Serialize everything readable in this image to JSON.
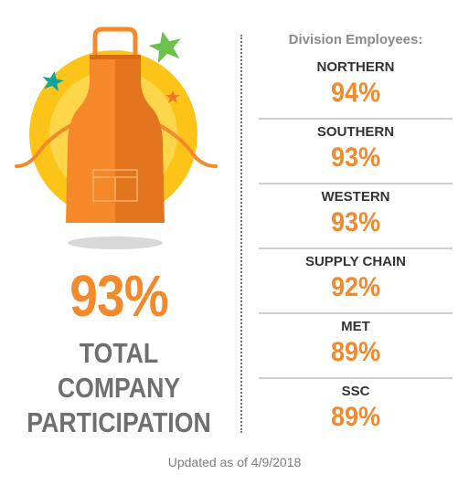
{
  "total": {
    "percent": "93%",
    "label_lines": [
      "TOTAL",
      "COMPANY",
      "PARTICIPATION"
    ]
  },
  "panel": {
    "title": "Division Employees:",
    "divisions": [
      {
        "name": "NORTHERN",
        "value": "94%"
      },
      {
        "name": "SOUTHERN",
        "value": "93%"
      },
      {
        "name": "WESTERN",
        "value": "93%"
      },
      {
        "name": "SUPPLY CHAIN",
        "value": "92%"
      },
      {
        "name": "MET",
        "value": "89%"
      },
      {
        "name": "SSC",
        "value": "89%"
      }
    ]
  },
  "footer": {
    "updated_text": "Updated as of 4/9/2018"
  },
  "colors": {
    "accent_orange": "#f28a2c",
    "sun_yellow": "#fcc419",
    "label_gray": "#6f6f6f",
    "star_green": "#6cc24a",
    "star_teal": "#11a59a"
  },
  "icons": [
    "apron-icon",
    "sun-circle",
    "star-green-icon",
    "star-teal-icon",
    "star-orange-icon"
  ]
}
